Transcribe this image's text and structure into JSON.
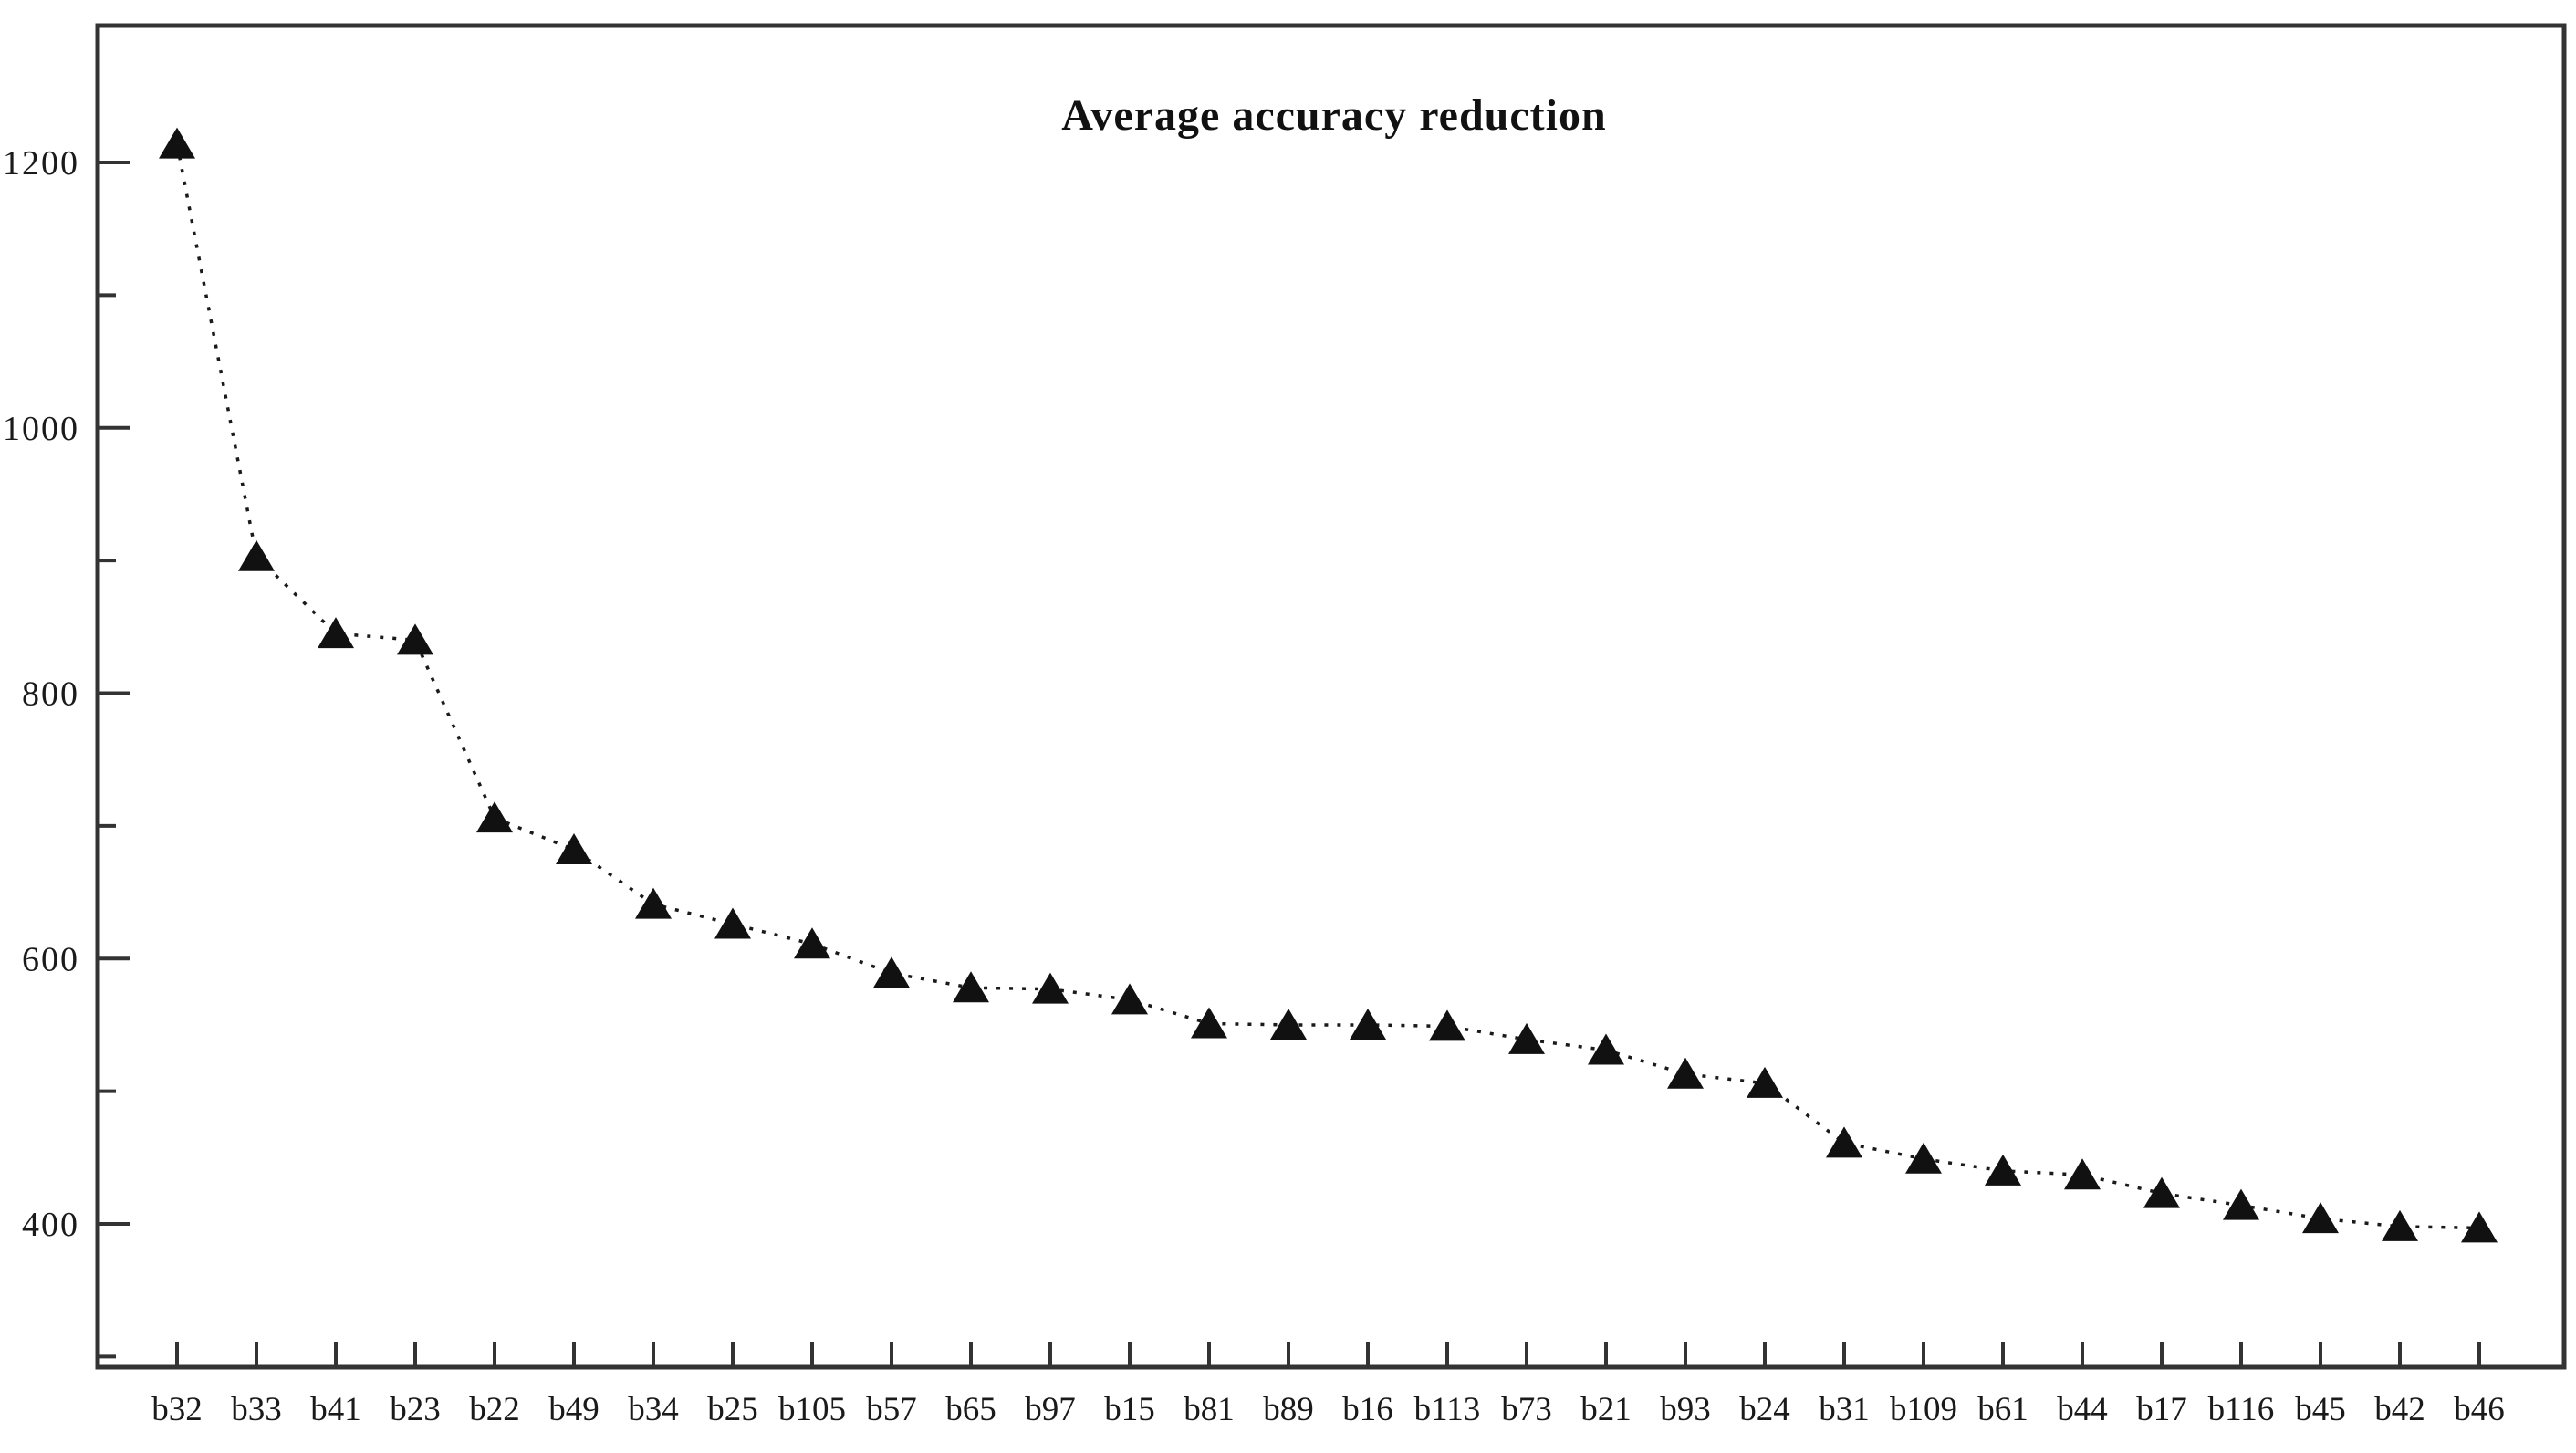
{
  "title": "Average accuracy reduction",
  "colors": {
    "background": "#ffffff",
    "frame": "#333333",
    "marker": "#111111",
    "line": "#1a1a1a",
    "text": "#111111"
  },
  "chart_data": {
    "type": "line",
    "title": "Average accuracy reduction",
    "series_name": "Average accuracy reduction",
    "marker": "triangle-up-filled",
    "line_style": "dotted",
    "grid": false,
    "legend": "none",
    "xlabel": "",
    "ylabel": "",
    "ylim": [
      290,
      1300
    ],
    "yticks_major": [
      400,
      600,
      800,
      1000,
      1200
    ],
    "yticks_minor": [
      300,
      500,
      700,
      900,
      1100
    ],
    "categories": [
      "b32",
      "b33",
      "b41",
      "b23",
      "b22",
      "b49",
      "b34",
      "b25",
      "b105",
      "b57",
      "b65",
      "b97",
      "b15",
      "b81",
      "b89",
      "b16",
      "b113",
      "b73",
      "b21",
      "b93",
      "b24",
      "b31",
      "b109",
      "b61",
      "b44",
      "b17",
      "b116",
      "b45",
      "b42",
      "b46"
    ],
    "values": [
      1214,
      903,
      845,
      840,
      706,
      682,
      641,
      626,
      611,
      589,
      578,
      577,
      569,
      551,
      550,
      550,
      549,
      539,
      531,
      513,
      506,
      461,
      449,
      440,
      437,
      423,
      414,
      404,
      398,
      397
    ]
  }
}
